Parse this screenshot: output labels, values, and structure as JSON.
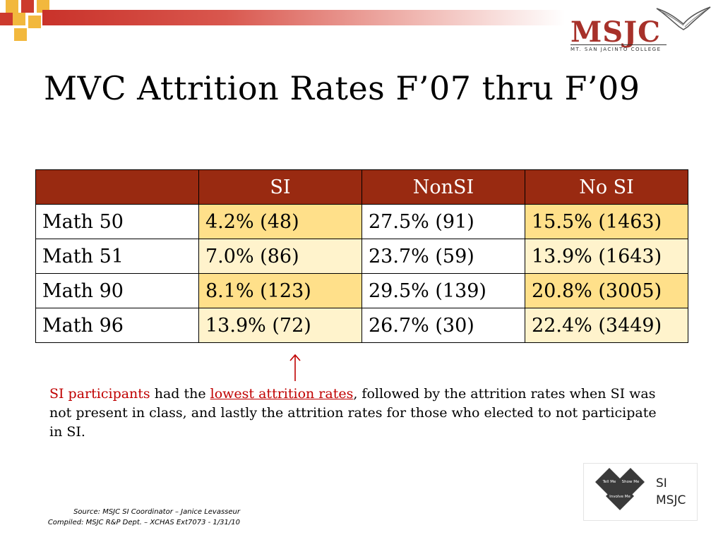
{
  "title": "MVC Attrition Rates F’07 thru F’09",
  "logo": {
    "name": "MSJC",
    "subtitle": "MT. SAN JACINTO COLLEGE"
  },
  "table": {
    "headers": [
      "",
      "SI",
      "NonSI",
      "No SI"
    ],
    "rows": [
      [
        "Math 50",
        "4.2% (48)",
        "27.5% (91)",
        "15.5% (1463)"
      ],
      [
        "Math 51",
        "7.0% (86)",
        "23.7% (59)",
        "13.9% (1643)"
      ],
      [
        "Math 90",
        "8.1% (123)",
        "29.5% (139)",
        "20.8% (3005)"
      ],
      [
        "Math 96",
        "13.9% (72)",
        "26.7% (30)",
        "22.4% (3449)"
      ]
    ]
  },
  "description": {
    "part1": "SI participants",
    "part2": " had the ",
    "part3": "lowest attrition rates",
    "part4": ", followed by the attrition rates when SI was not present in class, and lastly the attrition rates for those who elected to not participate in SI."
  },
  "source": {
    "line1": "Source: MSJC SI Coordinator – Janice Levasseur",
    "line2": "Compiled: MSJC R&P Dept. – XCHAS  Ext7073 -  1/31/10"
  },
  "si_logo": {
    "line1": "SI",
    "line2": "MSJC",
    "tell": "Tell Me",
    "show": "Show Me",
    "involve": "Involve Me"
  },
  "colors": {
    "header": "#992a11",
    "highlight_dark": "#ffe08a",
    "highlight_light": "#fff3cc",
    "accent_red": "#c00000"
  }
}
